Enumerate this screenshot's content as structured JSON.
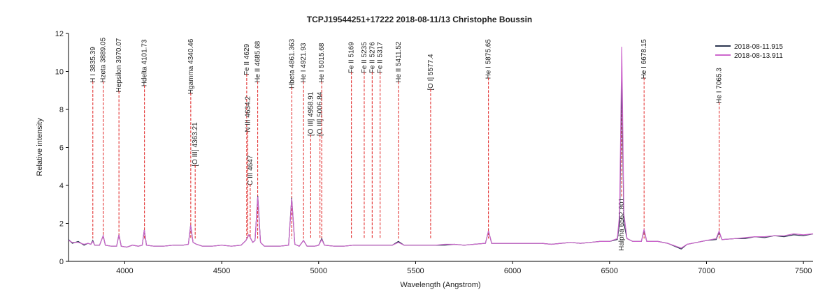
{
  "chart_data": {
    "type": "line",
    "title": "TCPJ19544251+17222  2018-08-11/13  Christophe Boussin",
    "x_label": "Wavelength (Angstrom)",
    "y_label": "Relative intensity",
    "xlim": [
      3710,
      7550
    ],
    "ylim": [
      0,
      12
    ],
    "xticks": [
      4000,
      4500,
      5000,
      5500,
      6000,
      6500,
      7000,
      7500
    ],
    "yticks": [
      0,
      2,
      4,
      6,
      8,
      10,
      12
    ],
    "legend": "top-right",
    "x": [
      3710,
      3730,
      3760,
      3790,
      3810,
      3825,
      3835,
      3845,
      3870,
      3889,
      3900,
      3930,
      3958,
      3970,
      3982,
      4010,
      4040,
      4070,
      4090,
      4101,
      4112,
      4150,
      4200,
      4250,
      4300,
      4328,
      4340,
      4352,
      4370,
      4400,
      4450,
      4500,
      4550,
      4600,
      4625,
      4640,
      4660,
      4672,
      4686,
      4700,
      4720,
      4760,
      4800,
      4845,
      4861,
      4877,
      4900,
      4922,
      4940,
      4980,
      5000,
      5016,
      5030,
      5080,
      5130,
      5180,
      5230,
      5280,
      5330,
      5380,
      5411,
      5440,
      5500,
      5550,
      5600,
      5650,
      5700,
      5750,
      5800,
      5860,
      5876,
      5892,
      5950,
      6000,
      6050,
      6100,
      6150,
      6200,
      6250,
      6300,
      6350,
      6400,
      6450,
      6500,
      6540,
      6552,
      6563,
      6574,
      6590,
      6620,
      6664,
      6678,
      6692,
      6750,
      6800,
      6870,
      6900,
      6950,
      7000,
      7050,
      7065,
      7080,
      7150,
      7200,
      7250,
      7300,
      7350,
      7400,
      7450,
      7500,
      7550
    ],
    "series": [
      {
        "name": "2018-08-11.915",
        "color": "#2b3550",
        "values": [
          1.15,
          0.95,
          1.05,
          0.85,
          0.95,
          0.9,
          1.1,
          0.85,
          0.85,
          1.35,
          0.85,
          0.8,
          0.8,
          1.4,
          0.8,
          0.75,
          0.85,
          0.8,
          0.85,
          1.65,
          0.85,
          0.8,
          0.8,
          0.85,
          0.85,
          0.9,
          1.9,
          1.0,
          0.9,
          0.8,
          0.8,
          0.85,
          0.8,
          0.85,
          1.1,
          1.4,
          1.0,
          1.1,
          3.45,
          1.0,
          0.8,
          0.8,
          0.8,
          0.85,
          3.35,
          0.9,
          0.8,
          1.1,
          0.8,
          0.8,
          0.85,
          1.2,
          0.85,
          0.8,
          0.8,
          0.85,
          0.85,
          0.85,
          0.85,
          0.85,
          1.05,
          0.85,
          0.85,
          0.85,
          0.85,
          0.85,
          0.9,
          0.85,
          0.9,
          0.95,
          1.6,
          0.95,
          0.95,
          0.95,
          0.95,
          0.95,
          0.95,
          0.9,
          0.95,
          1.0,
          0.95,
          1.0,
          1.05,
          1.05,
          1.15,
          2.0,
          9.7,
          2.0,
          1.2,
          1.05,
          1.05,
          1.65,
          1.05,
          1.05,
          0.95,
          0.65,
          0.9,
          1.0,
          1.1,
          1.15,
          1.55,
          1.15,
          1.2,
          1.2,
          1.3,
          1.25,
          1.35,
          1.3,
          1.4,
          1.35,
          1.45
        ]
      },
      {
        "name": "2018-08-13.911",
        "color": "#cc66cc",
        "values": [
          1.1,
          1.0,
          1.0,
          0.9,
          0.95,
          0.9,
          1.05,
          0.85,
          0.85,
          1.35,
          0.85,
          0.8,
          0.8,
          1.4,
          0.8,
          0.75,
          0.85,
          0.8,
          0.85,
          1.65,
          0.85,
          0.8,
          0.8,
          0.85,
          0.85,
          0.9,
          1.9,
          1.0,
          0.9,
          0.8,
          0.8,
          0.85,
          0.8,
          0.85,
          1.1,
          1.4,
          1.0,
          1.1,
          3.4,
          1.0,
          0.8,
          0.8,
          0.8,
          0.85,
          3.3,
          0.9,
          0.8,
          1.1,
          0.8,
          0.8,
          0.85,
          1.15,
          0.85,
          0.8,
          0.8,
          0.85,
          0.85,
          0.85,
          0.85,
          0.85,
          1.0,
          0.85,
          0.85,
          0.85,
          0.85,
          0.9,
          0.9,
          0.85,
          0.9,
          0.95,
          1.6,
          0.95,
          0.95,
          0.95,
          0.95,
          0.95,
          0.95,
          0.9,
          0.95,
          1.0,
          0.95,
          1.0,
          1.05,
          1.05,
          1.2,
          2.5,
          11.3,
          2.5,
          1.2,
          1.05,
          1.05,
          1.7,
          1.05,
          1.05,
          0.95,
          0.7,
          0.9,
          1.0,
          1.1,
          1.2,
          1.6,
          1.15,
          1.2,
          1.25,
          1.3,
          1.3,
          1.35,
          1.35,
          1.45,
          1.4,
          1.45
        ]
      }
    ],
    "annotations": [
      {
        "text": "H I 3835.39",
        "x": 3835.39
      },
      {
        "text": "Hzeta 3889.05",
        "x": 3889.05
      },
      {
        "text": "Hepsilon 3970.07",
        "x": 3970.07
      },
      {
        "text": "Hdelta 4101.73",
        "x": 4101.73
      },
      {
        "text": "Hgamma 4340.46",
        "x": 4340.46
      },
      {
        "text": "[O III] 4363.21",
        "x": 4363.21
      },
      {
        "text": "Fe II 4629",
        "x": 4629
      },
      {
        "text": "N III 4634.2",
        "x": 4634.2
      },
      {
        "text": "C III 4647",
        "x": 4647
      },
      {
        "text": "He II 4685.68",
        "x": 4685.68
      },
      {
        "text": "Hbeta 4861.363",
        "x": 4861.363
      },
      {
        "text": "He I 4921.93",
        "x": 4921.93
      },
      {
        "text": "[O III] 4958.91",
        "x": 4958.91
      },
      {
        "text": "[O III] 5006.84",
        "x": 5006.84
      },
      {
        "text": "He I 5015.68",
        "x": 5015.68
      },
      {
        "text": "Fe II 5169",
        "x": 5169
      },
      {
        "text": "Fe II 5235",
        "x": 5235
      },
      {
        "text": "Fe II 5276",
        "x": 5276
      },
      {
        "text": "Fe II 5317",
        "x": 5317
      },
      {
        "text": "He II 5411.52",
        "x": 5411.52
      },
      {
        "text": "[O I] 5577.4",
        "x": 5577.4
      },
      {
        "text": "He I 5875.65",
        "x": 5875.65
      },
      {
        "text": "Halpha 6562.801",
        "x": 6562.801
      },
      {
        "text": "He I 6678.15",
        "x": 6678.15
      },
      {
        "text": "He I 7065.3",
        "x": 7065.3
      }
    ]
  }
}
